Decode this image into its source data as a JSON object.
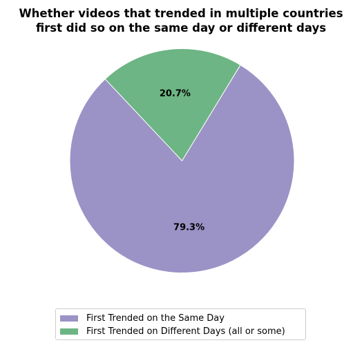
{
  "chart_data": {
    "type": "pie",
    "title_lines": [
      "Whether videos that trended in multiple countries",
      "first did so on the same day or different days"
    ],
    "slices": [
      {
        "label": "First Trended on the Same Day",
        "value": 79.3,
        "display": "79.3%",
        "color": "#9b93c6"
      },
      {
        "label": "First Trended on Different Days (all or some)",
        "value": 20.7,
        "display": "20.7%",
        "color": "#6db584"
      }
    ],
    "legend_placement": "bottom-center"
  }
}
